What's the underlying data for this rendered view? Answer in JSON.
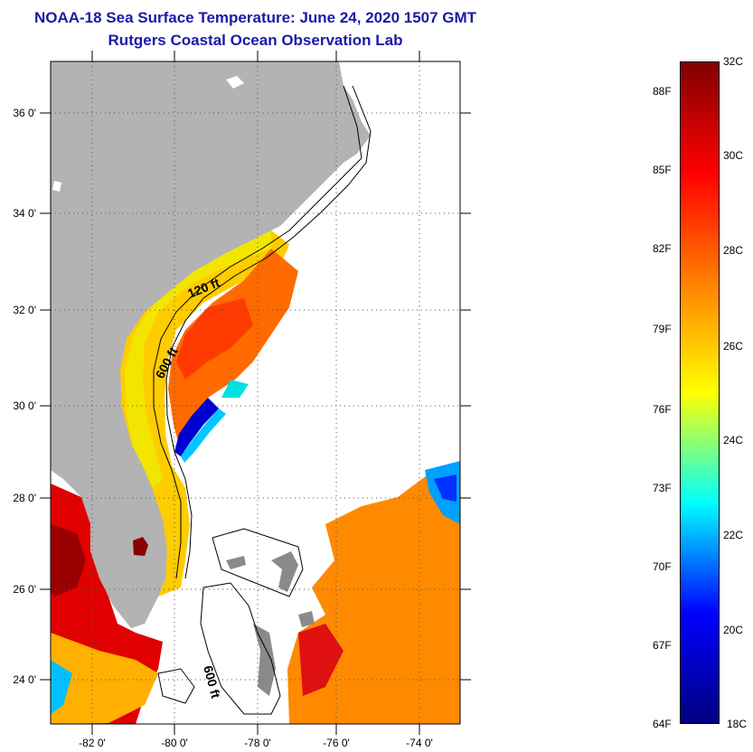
{
  "title": {
    "line1": "NOAA-18 Sea Surface Temperature:  June 24, 2020 1507 GMT",
    "line2": "Rutgers Coastal Ocean Observation Lab"
  },
  "map": {
    "lat_labels": [
      "36 0'",
      "34 0'",
      "32 0'",
      "30 0'",
      "28 0'",
      "26 0'",
      "24 0'"
    ],
    "lon_labels": [
      "-82 0'",
      "-80 0'",
      "-78 0'",
      "-76 0'",
      "-74 0'"
    ],
    "contour_labels": [
      "120 ft",
      "600 ft",
      "600 ft"
    ],
    "land_color": "#b3b3b3",
    "no_data_color": "#ffffff"
  },
  "colorbar": {
    "celsius_labels": [
      "32C",
      "30C",
      "28C",
      "26C",
      "24C",
      "22C",
      "20C",
      "18C"
    ],
    "fahrenheit_labels": [
      "88F",
      "85F",
      "82F",
      "79F",
      "76F",
      "73F",
      "70F",
      "67F",
      "64F"
    ],
    "colormap": [
      "#000080",
      "#0000ff",
      "#00ffff",
      "#ffff00",
      "#ff8000",
      "#ff0000",
      "#800000"
    ]
  }
}
